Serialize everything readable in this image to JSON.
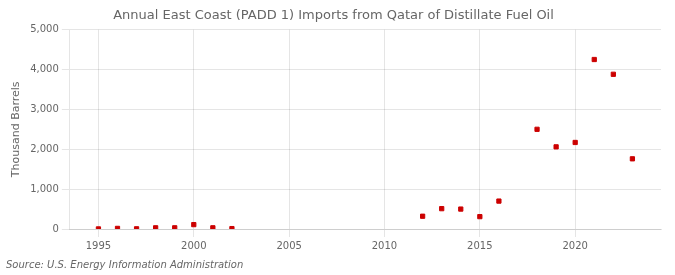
{
  "chart_data": {
    "type": "scatter",
    "title": "Annual East Coast (PADD 1) Imports from Qatar of Distillate Fuel Oil",
    "y_label": "Thousand Barrels",
    "annotations": [
      "Source: U.S. Energy Information Administration"
    ],
    "x": [
      1995,
      1996,
      1997,
      1998,
      1999,
      2000,
      2001,
      2002,
      2012,
      2013,
      2014,
      2015,
      2016,
      2018,
      2019,
      2020,
      2021,
      2022,
      2023
    ],
    "values": [
      2,
      15,
      5,
      30,
      30,
      110,
      30,
      10,
      320,
      510,
      500,
      310,
      700,
      2500,
      2060,
      2170,
      4250,
      3880,
      1760
    ],
    "color": "#cc0000",
    "marker": "square",
    "xlim": [
      1993.5,
      2024.5
    ],
    "xticks": [
      1995,
      2000,
      2005,
      2010,
      2015,
      2020
    ],
    "ylim": [
      0,
      5000
    ],
    "yticks": [
      0,
      {
        "value": 1000,
        "label": "1,000"
      },
      {
        "value": 2000,
        "label": "2,000"
      },
      {
        "value": 3000,
        "label": "3,000"
      },
      {
        "value": 4000,
        "label": "4,000"
      },
      {
        "value": 5000,
        "label": "5,000"
      }
    ],
    "grid": true
  }
}
